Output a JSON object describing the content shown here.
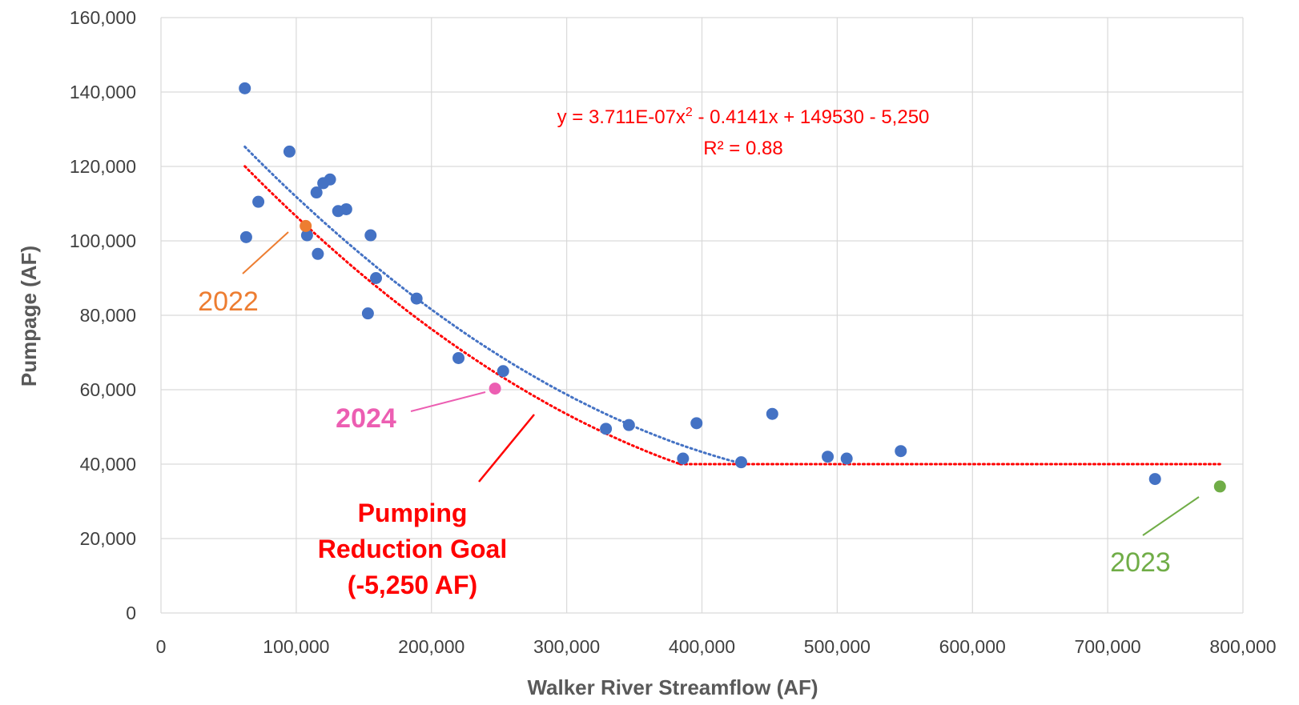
{
  "colors": {
    "series": "#4472c4",
    "goal": "#ff0000",
    "year_2022": "#ed7d31",
    "year_2023": "#70ad47",
    "year_2024": "#ec5eb2",
    "grid": "#d9d9d9",
    "text": "#404040",
    "axis_title": "#595959"
  },
  "chart_data": {
    "type": "scatter",
    "xlabel": "Walker River Streamflow (AF)",
    "ylabel": "Pumpage (AF)",
    "xlim": [
      0,
      800000
    ],
    "ylim": [
      0,
      160000
    ],
    "x_ticks": [
      0,
      100000,
      200000,
      300000,
      400000,
      500000,
      600000,
      700000,
      800000
    ],
    "x_tick_labels": [
      "0",
      "100,000",
      "200,000",
      "300,000",
      "400,000",
      "500,000",
      "600,000",
      "700,000",
      "800,000"
    ],
    "y_ticks": [
      0,
      20000,
      40000,
      60000,
      80000,
      100000,
      120000,
      140000,
      160000
    ],
    "y_tick_labels": [
      "0",
      "20,000",
      "40,000",
      "60,000",
      "80,000",
      "100,000",
      "120,000",
      "140,000",
      "160,000"
    ],
    "grid": true,
    "legend": "none",
    "points": [
      {
        "x": 62000,
        "y": 141000
      },
      {
        "x": 63000,
        "y": 101000
      },
      {
        "x": 72000,
        "y": 110500
      },
      {
        "x": 95000,
        "y": 124000
      },
      {
        "x": 108000,
        "y": 101500
      },
      {
        "x": 115000,
        "y": 113000
      },
      {
        "x": 116000,
        "y": 96500
      },
      {
        "x": 120000,
        "y": 115500
      },
      {
        "x": 125000,
        "y": 116500
      },
      {
        "x": 131000,
        "y": 108000
      },
      {
        "x": 137000,
        "y": 108500
      },
      {
        "x": 155000,
        "y": 101500
      },
      {
        "x": 153000,
        "y": 80500
      },
      {
        "x": 159000,
        "y": 90000
      },
      {
        "x": 189000,
        "y": 84500
      },
      {
        "x": 220000,
        "y": 68500
      },
      {
        "x": 253000,
        "y": 65000
      },
      {
        "x": 329000,
        "y": 49500
      },
      {
        "x": 346000,
        "y": 50500
      },
      {
        "x": 386000,
        "y": 41500
      },
      {
        "x": 396000,
        "y": 51000
      },
      {
        "x": 429000,
        "y": 40500
      },
      {
        "x": 452000,
        "y": 53500
      },
      {
        "x": 493000,
        "y": 42000
      },
      {
        "x": 507000,
        "y": 41500
      },
      {
        "x": 547000,
        "y": 43500
      },
      {
        "x": 735000,
        "y": 36000
      }
    ],
    "highlighted": [
      {
        "year": "2022",
        "x": 107000,
        "y": 104000,
        "color_key": "year_2022"
      },
      {
        "year": "2024",
        "x": 247000,
        "y": 60300,
        "color_key": "year_2024"
      },
      {
        "year": "2023",
        "x": 783000,
        "y": 34000,
        "color_key": "year_2023"
      }
    ],
    "trendline": {
      "type": "polynomial",
      "a": 3.711e-07,
      "b": -0.4141,
      "c": 149530,
      "x_range": [
        62000,
        430000
      ]
    },
    "goal_line": {
      "offset": -5250,
      "curve_x_range": [
        62000,
        384000
      ],
      "floor_y": 40000,
      "floor_x_range": [
        384000,
        783000
      ]
    },
    "annotations": {
      "equation_line1": "y = 3.711E-07x",
      "equation_sup": "2",
      "equation_line1_rest": " - 0.4141x + 149530 - 5,250",
      "r_squared": "R² = 0.88",
      "goal_label": [
        "Pumping",
        "Reduction Goal",
        "(-5,250 AF)"
      ],
      "year_2022": "2022",
      "year_2023": "2023",
      "year_2024": "2024"
    }
  }
}
